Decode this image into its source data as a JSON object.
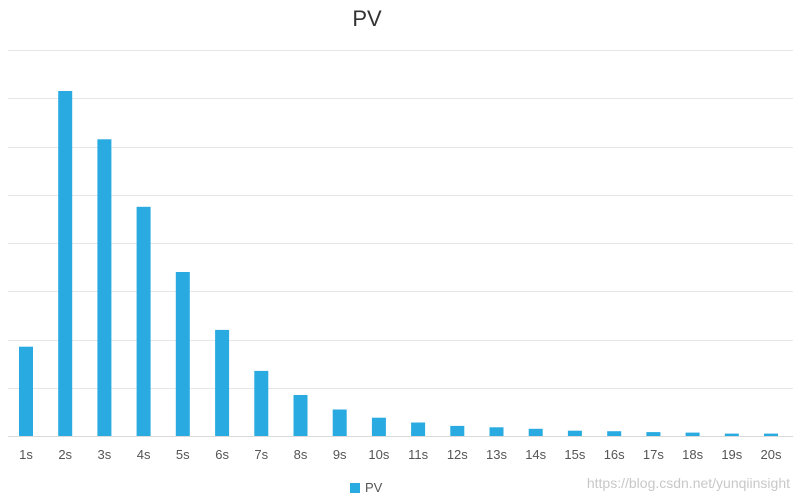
{
  "chart_data": {
    "type": "bar",
    "title": "PV",
    "xlabel": "",
    "ylabel": "",
    "categories": [
      "1s",
      "2s",
      "3s",
      "4s",
      "5s",
      "6s",
      "7s",
      "8s",
      "9s",
      "10s",
      "11s",
      "12s",
      "13s",
      "14s",
      "15s",
      "16s",
      "17s",
      "18s",
      "19s",
      "20s"
    ],
    "series": [
      {
        "name": "PV",
        "values": [
          18.5,
          71.5,
          61.5,
          47.5,
          34,
          22,
          13.5,
          8.5,
          5.5,
          3.8,
          2.8,
          2.1,
          1.8,
          1.5,
          1.1,
          1.0,
          0.8,
          0.7,
          0.5,
          0.5
        ]
      }
    ],
    "ylim": [
      0,
      80
    ],
    "grid": true,
    "y_tick_labels_visible": false,
    "legend_position": "bottom-center",
    "colors": {
      "bar": "#29abe2",
      "grid": "#e6e6e6",
      "title": "#333333",
      "tick": "#555555"
    }
  },
  "watermark": "https://blog.csdn.net/yunqiinsight"
}
